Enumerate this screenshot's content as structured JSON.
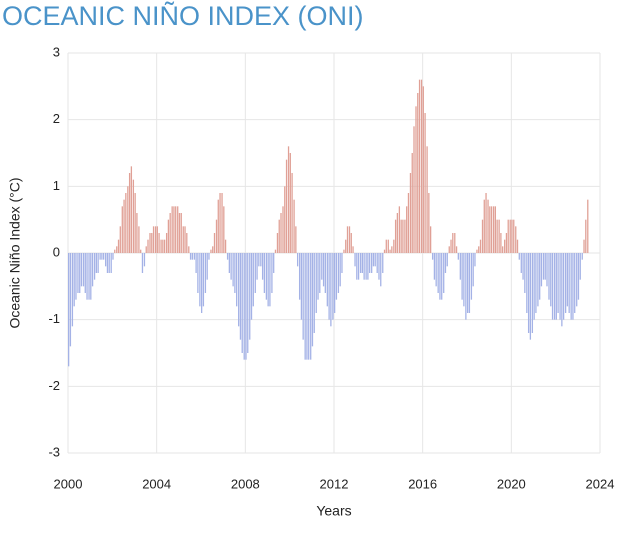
{
  "chart_data": {
    "type": "bar",
    "title": "OCEANIC NIÑO INDEX (ONI)",
    "x_label": "Years",
    "y_label": "Oceanic Niño Index (°C)",
    "x": [
      2000,
      2000.08,
      2000.17,
      2000.25,
      2000.33,
      2000.42,
      2000.5,
      2000.58,
      2000.67,
      2000.75,
      2000.83,
      2000.92,
      2001,
      2001.08,
      2001.17,
      2001.25,
      2001.33,
      2001.42,
      2001.5,
      2001.58,
      2001.67,
      2001.75,
      2001.83,
      2001.92,
      2002,
      2002.08,
      2002.17,
      2002.25,
      2002.33,
      2002.42,
      2002.5,
      2002.58,
      2002.67,
      2002.75,
      2002.83,
      2002.92,
      2003,
      2003.08,
      2003.17,
      2003.25,
      2003.33,
      2003.42,
      2003.5,
      2003.58,
      2003.67,
      2003.75,
      2003.83,
      2003.92,
      2004,
      2004.08,
      2004.17,
      2004.25,
      2004.33,
      2004.42,
      2004.5,
      2004.58,
      2004.67,
      2004.75,
      2004.83,
      2004.92,
      2005,
      2005.08,
      2005.17,
      2005.25,
      2005.33,
      2005.42,
      2005.5,
      2005.58,
      2005.67,
      2005.75,
      2005.83,
      2005.92,
      2006,
      2006.08,
      2006.17,
      2006.25,
      2006.33,
      2006.42,
      2006.5,
      2006.58,
      2006.67,
      2006.75,
      2006.83,
      2006.92,
      2007,
      2007.08,
      2007.17,
      2007.25,
      2007.33,
      2007.42,
      2007.5,
      2007.58,
      2007.67,
      2007.75,
      2007.83,
      2007.92,
      2008,
      2008.08,
      2008.17,
      2008.25,
      2008.33,
      2008.42,
      2008.5,
      2008.58,
      2008.67,
      2008.75,
      2008.83,
      2008.92,
      2009,
      2009.08,
      2009.17,
      2009.25,
      2009.33,
      2009.42,
      2009.5,
      2009.58,
      2009.67,
      2009.75,
      2009.83,
      2009.92,
      2010,
      2010.08,
      2010.17,
      2010.25,
      2010.33,
      2010.42,
      2010.5,
      2010.58,
      2010.67,
      2010.75,
      2010.83,
      2010.92,
      2011,
      2011.08,
      2011.17,
      2011.25,
      2011.33,
      2011.42,
      2011.5,
      2011.58,
      2011.67,
      2011.75,
      2011.83,
      2011.92,
      2012,
      2012.08,
      2012.17,
      2012.25,
      2012.33,
      2012.42,
      2012.5,
      2012.58,
      2012.67,
      2012.75,
      2012.83,
      2012.92,
      2013,
      2013.08,
      2013.17,
      2013.25,
      2013.33,
      2013.42,
      2013.5,
      2013.58,
      2013.67,
      2013.75,
      2013.83,
      2013.92,
      2014,
      2014.08,
      2014.17,
      2014.25,
      2014.33,
      2014.42,
      2014.5,
      2014.58,
      2014.67,
      2014.75,
      2014.83,
      2014.92,
      2015,
      2015.08,
      2015.17,
      2015.25,
      2015.33,
      2015.42,
      2015.5,
      2015.58,
      2015.67,
      2015.75,
      2015.83,
      2015.92,
      2016,
      2016.08,
      2016.17,
      2016.25,
      2016.33,
      2016.42,
      2016.5,
      2016.58,
      2016.67,
      2016.75,
      2016.83,
      2016.92,
      2017,
      2017.08,
      2017.17,
      2017.25,
      2017.33,
      2017.42,
      2017.5,
      2017.58,
      2017.67,
      2017.75,
      2017.83,
      2017.92,
      2018,
      2018.08,
      2018.17,
      2018.25,
      2018.33,
      2018.42,
      2018.5,
      2018.58,
      2018.67,
      2018.75,
      2018.83,
      2018.92,
      2019,
      2019.08,
      2019.17,
      2019.25,
      2019.33,
      2019.42,
      2019.5,
      2019.58,
      2019.67,
      2019.75,
      2019.83,
      2019.92,
      2020,
      2020.08,
      2020.17,
      2020.25,
      2020.33,
      2020.42,
      2020.5,
      2020.58,
      2020.67,
      2020.75,
      2020.83,
      2020.92,
      2021,
      2021.08,
      2021.17,
      2021.25,
      2021.33,
      2021.42,
      2021.5,
      2021.58,
      2021.67,
      2021.75,
      2021.83,
      2021.92,
      2022,
      2022.08,
      2022.17,
      2022.25,
      2022.33,
      2022.42,
      2022.5,
      2022.58,
      2022.67,
      2022.75,
      2022.83,
      2022.92,
      2023,
      2023.08,
      2023.17,
      2023.25,
      2023.33,
      2023.42
    ],
    "values": [
      -1.7,
      -1.4,
      -1.1,
      -0.8,
      -0.7,
      -0.6,
      -0.6,
      -0.5,
      -0.5,
      -0.6,
      -0.7,
      -0.7,
      -0.7,
      -0.5,
      -0.4,
      -0.3,
      -0.3,
      -0.1,
      -0.1,
      -0.1,
      -0.2,
      -0.3,
      -0.3,
      -0.3,
      -0.1,
      0.05,
      0.1,
      0.2,
      0.4,
      0.7,
      0.8,
      0.9,
      1.0,
      1.2,
      1.3,
      1.1,
      0.9,
      0.6,
      0.4,
      0.05,
      -0.3,
      -0.2,
      0.1,
      0.2,
      0.3,
      0.3,
      0.4,
      0.4,
      0.4,
      0.3,
      0.2,
      0.2,
      0.2,
      0.3,
      0.5,
      0.6,
      0.7,
      0.7,
      0.7,
      0.7,
      0.6,
      0.6,
      0.4,
      0.4,
      0.3,
      0.1,
      -0.1,
      -0.1,
      -0.1,
      -0.3,
      -0.6,
      -0.8,
      -0.9,
      -0.8,
      -0.6,
      -0.4,
      -0.1,
      0.05,
      0.1,
      0.3,
      0.5,
      0.8,
      0.9,
      0.9,
      0.7,
      0.2,
      -0.1,
      -0.3,
      -0.4,
      -0.5,
      -0.6,
      -0.8,
      -1.1,
      -1.3,
      -1.5,
      -1.6,
      -1.6,
      -1.5,
      -1.3,
      -1.0,
      -0.8,
      -0.6,
      -0.4,
      -0.2,
      -0.2,
      -0.4,
      -0.6,
      -0.7,
      -0.8,
      -0.8,
      -0.6,
      -0.3,
      0.05,
      0.3,
      0.5,
      0.6,
      0.7,
      1.0,
      1.4,
      1.6,
      1.5,
      1.2,
      0.8,
      0.4,
      -0.2,
      -0.7,
      -1.0,
      -1.3,
      -1.6,
      -1.6,
      -1.6,
      -1.6,
      -1.4,
      -1.2,
      -0.9,
      -0.7,
      -0.6,
      -0.4,
      -0.5,
      -0.6,
      -0.8,
      -1.0,
      -1.1,
      -1.0,
      -0.9,
      -0.7,
      -0.6,
      -0.5,
      -0.3,
      0.05,
      0.2,
      0.4,
      0.4,
      0.3,
      0.1,
      -0.2,
      -0.4,
      -0.4,
      -0.3,
      -0.3,
      -0.4,
      -0.4,
      -0.4,
      -0.3,
      -0.3,
      -0.2,
      -0.2,
      -0.3,
      -0.4,
      -0.5,
      -0.3,
      0.05,
      0.2,
      0.2,
      0.05,
      0.1,
      0.2,
      0.5,
      0.6,
      0.7,
      0.5,
      0.5,
      0.5,
      0.7,
      0.9,
      1.2,
      1.5,
      1.9,
      2.2,
      2.4,
      2.6,
      2.6,
      2.5,
      2.1,
      1.6,
      0.9,
      0.4,
      -0.1,
      -0.4,
      -0.5,
      -0.6,
      -0.7,
      -0.7,
      -0.6,
      -0.3,
      -0.2,
      0.1,
      0.2,
      0.3,
      0.3,
      0.1,
      -0.1,
      -0.4,
      -0.7,
      -0.8,
      -1.0,
      -0.9,
      -0.9,
      -0.7,
      -0.5,
      -0.2,
      0.05,
      0.1,
      0.2,
      0.5,
      0.8,
      0.9,
      0.8,
      0.7,
      0.7,
      0.7,
      0.7,
      0.5,
      0.5,
      0.3,
      0.1,
      0.2,
      0.3,
      0.5,
      0.5,
      0.5,
      0.5,
      0.4,
      0.2,
      -0.1,
      -0.3,
      -0.4,
      -0.6,
      -0.9,
      -1.2,
      -1.3,
      -1.2,
      -1.0,
      -0.9,
      -0.8,
      -0.7,
      -0.5,
      -0.4,
      -0.4,
      -0.5,
      -0.7,
      -0.8,
      -1.0,
      -1.0,
      -1.0,
      -0.9,
      -1.0,
      -1.1,
      -1.0,
      -0.9,
      -0.8,
      -0.9,
      -1.0,
      -1.0,
      -0.9,
      -0.8,
      -0.7,
      -0.4,
      -0.1,
      0.2,
      0.5,
      0.8
    ],
    "positive_color": "#e0a096",
    "negative_color": "#a4b2e6",
    "xlim": [
      2000,
      2024
    ],
    "xticks": [
      2000,
      2004,
      2008,
      2012,
      2016,
      2020,
      2024
    ],
    "ylim": [
      -3,
      3
    ],
    "yticks": [
      -3,
      -2,
      -1,
      0,
      1,
      2,
      3
    ],
    "grid": true
  }
}
